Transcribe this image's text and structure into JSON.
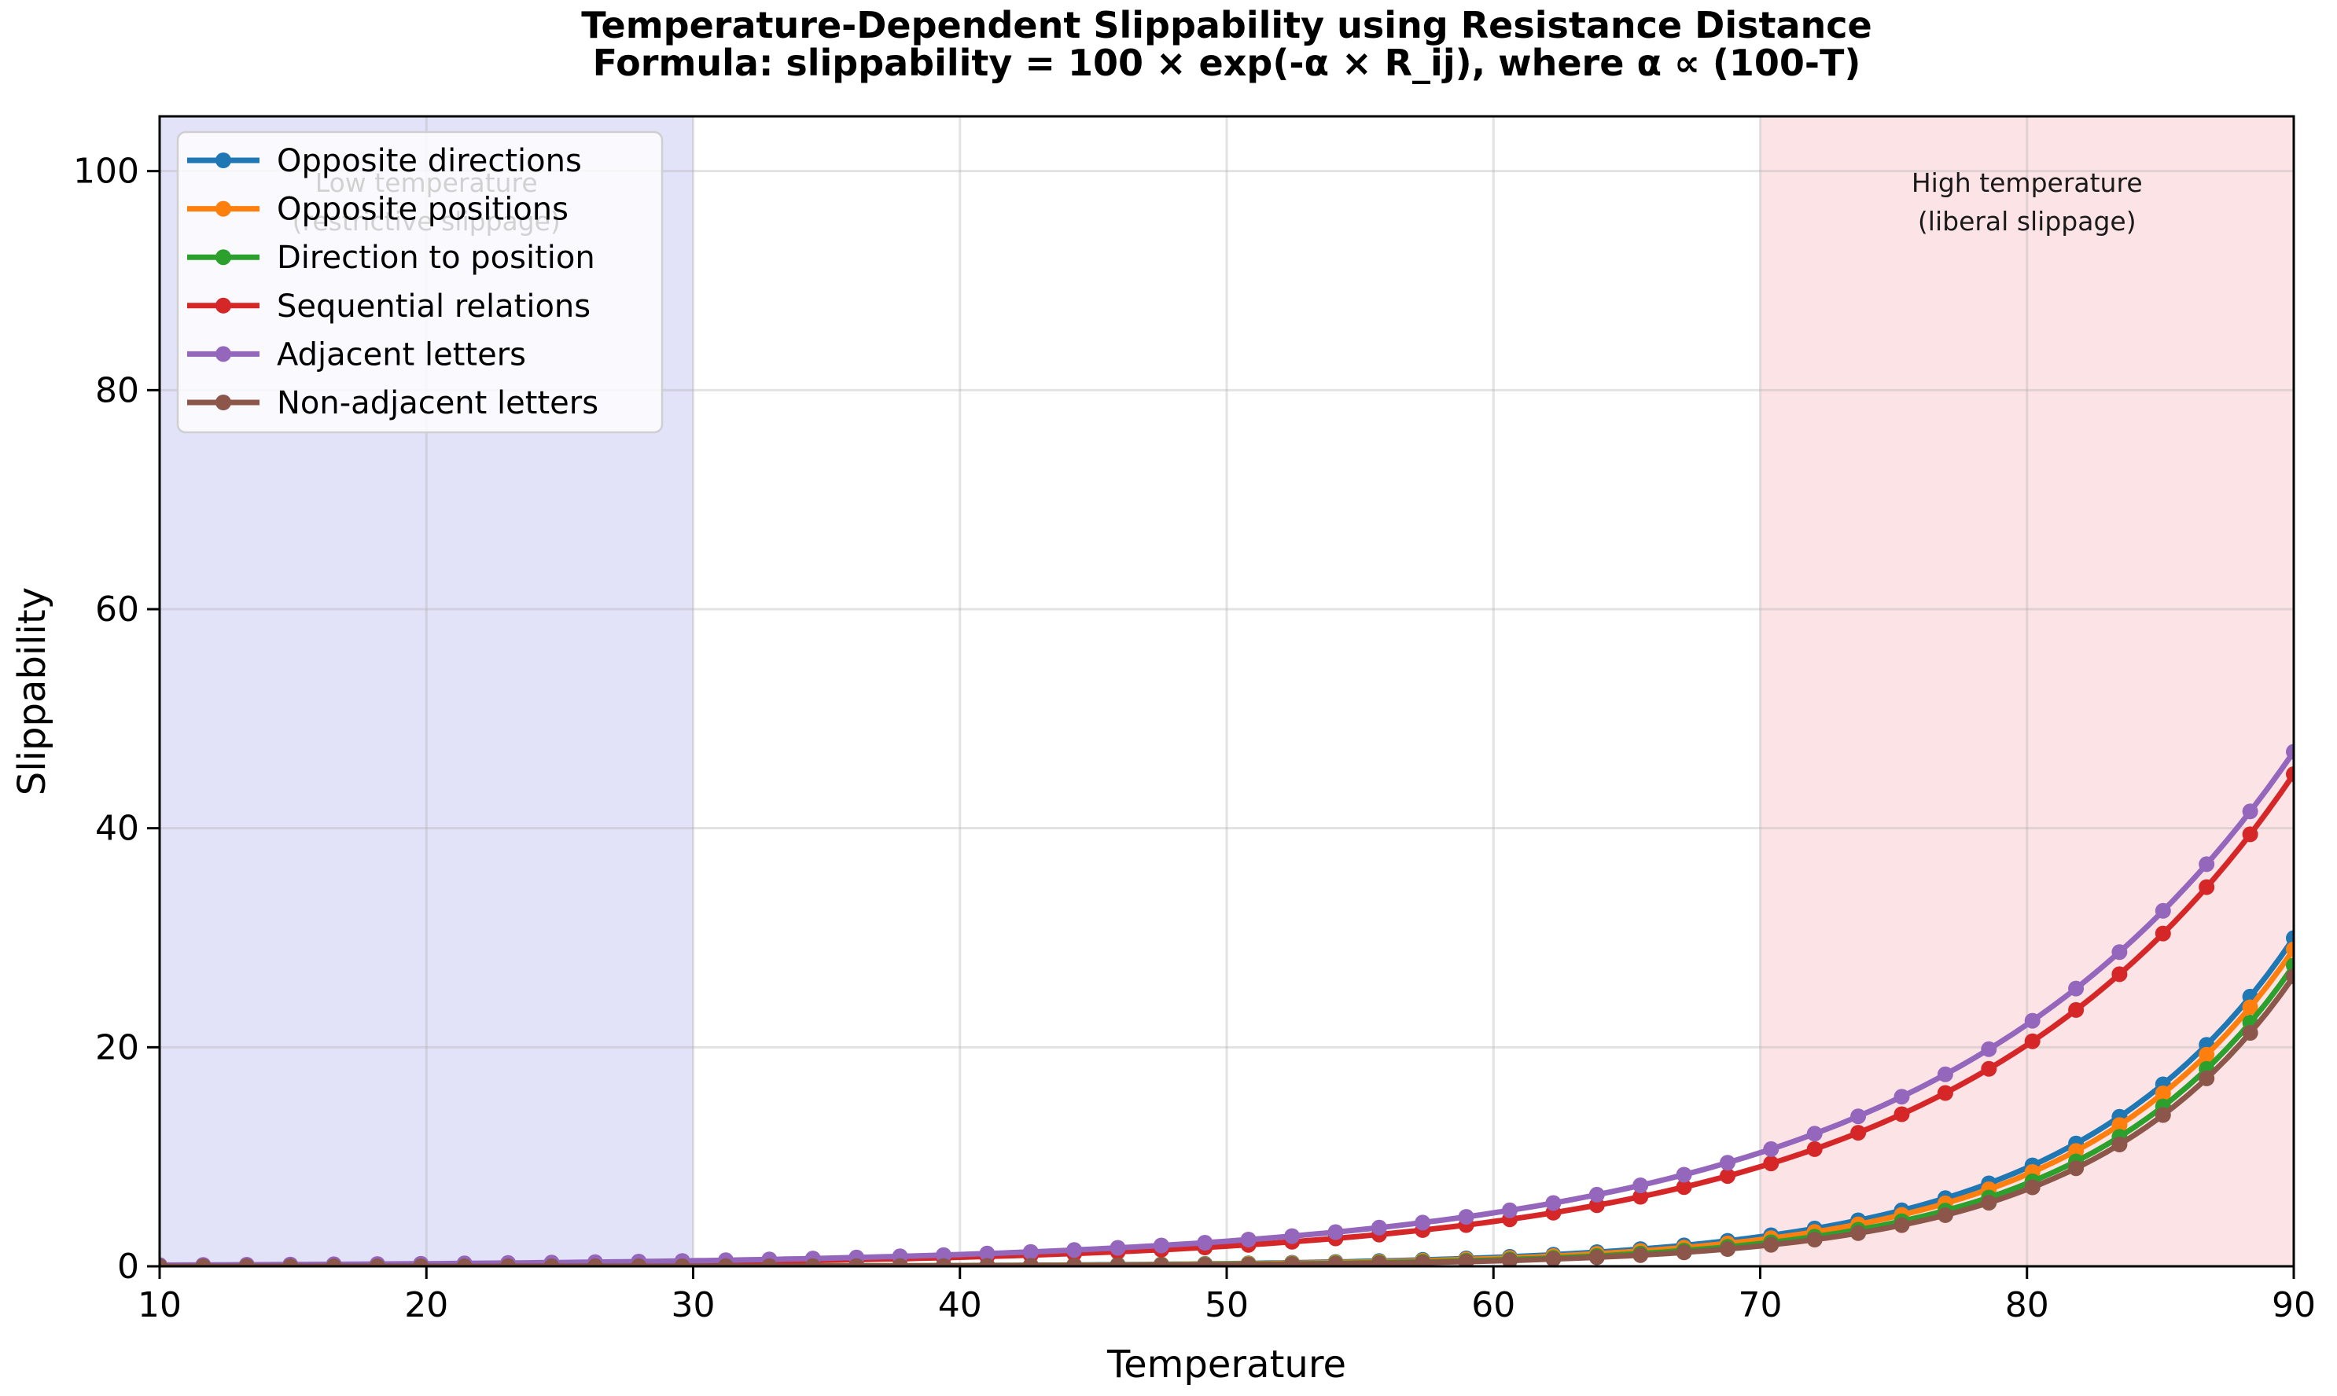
{
  "chart_data": {
    "type": "line",
    "title": "Temperature-Dependent Slippability using Resistance Distance",
    "subtitle": "Formula: slippability = 100 × exp(-α × R_ij), where α ∝ (100-T)",
    "xlabel": "Temperature",
    "ylabel": "Slippability",
    "xlim": [
      10,
      90
    ],
    "ylim": [
      0,
      105
    ],
    "x_ticks": [
      10,
      20,
      30,
      40,
      50,
      60,
      70,
      80,
      90
    ],
    "y_ticks": [
      0,
      20,
      40,
      60,
      80,
      100
    ],
    "grid": true,
    "legend_position": "upper left",
    "markers_per_series": 50,
    "x": [
      10,
      15,
      20,
      25,
      30,
      35,
      40,
      45,
      50,
      55,
      60,
      65,
      70,
      75,
      80,
      85,
      90
    ],
    "series": [
      {
        "name": "Opposite directions",
        "color": "#1f77b4",
        "values": [
          0.002,
          0.0036,
          0.0066,
          0.012,
          0.0219,
          0.0399,
          0.0728,
          0.133,
          0.2428,
          0.4432,
          0.8092,
          1.4774,
          2.6974,
          4.9247,
          8.9911,
          16.4153,
          29.9699
        ]
      },
      {
        "name": "Opposite positions",
        "color": "#ff7f0e",
        "values": [
          0.0014,
          0.0027,
          0.005,
          0.0093,
          0.0172,
          0.032,
          0.0594,
          0.1102,
          0.2047,
          0.3801,
          0.7058,
          1.3107,
          2.4341,
          4.5202,
          8.3942,
          15.5884,
          28.9483
        ]
      },
      {
        "name": "Direction to position",
        "color": "#2ca02c",
        "values": [
          0.0009,
          0.0017,
          0.0033,
          0.0062,
          0.0119,
          0.0227,
          0.0432,
          0.0824,
          0.1571,
          0.2996,
          0.5713,
          1.0894,
          2.0773,
          3.9613,
          7.5539,
          14.4048,
          27.4689
        ]
      },
      {
        "name": "Sequential relations",
        "color": "#d62728",
        "values": [
          0.0753,
          0.1122,
          0.1673,
          0.2495,
          0.372,
          0.5547,
          0.8271,
          1.2333,
          1.8389,
          2.742,
          4.0886,
          6.0965,
          9.0905,
          13.5548,
          20.2122,
          30.1382,
          44.9388
        ]
      },
      {
        "name": "Adjacent letters",
        "color": "#9467bd",
        "values": [
          0.1118,
          0.1631,
          0.2379,
          0.347,
          0.5062,
          0.7384,
          1.0771,
          1.5712,
          2.2919,
          3.3432,
          4.8768,
          7.1138,
          10.377,
          15.1366,
          22.0795,
          32.2073,
          46.9804
        ]
      },
      {
        "name": "Non-adjacent letters",
        "color": "#8c564b",
        "values": [
          0.0006,
          0.0013,
          0.0024,
          0.0047,
          0.0092,
          0.0178,
          0.0346,
          0.0672,
          0.1306,
          0.2537,
          0.4928,
          0.9573,
          1.8596,
          3.6122,
          7.0168,
          13.6304,
          26.4775
        ]
      }
    ],
    "regions": [
      {
        "label": "Low temperature",
        "sublabel": "(restrictive slippage)",
        "x_start": 10,
        "x_end": 30,
        "fill": "#e2e2f8",
        "label_x": 20,
        "label_color": "#000000"
      },
      {
        "label": "High temperature",
        "sublabel": "(liberal slippage)",
        "x_start": 70,
        "x_end": 90,
        "fill": "#fce4e6",
        "label_x": 80,
        "label_color": "#1a1a1a"
      }
    ]
  }
}
